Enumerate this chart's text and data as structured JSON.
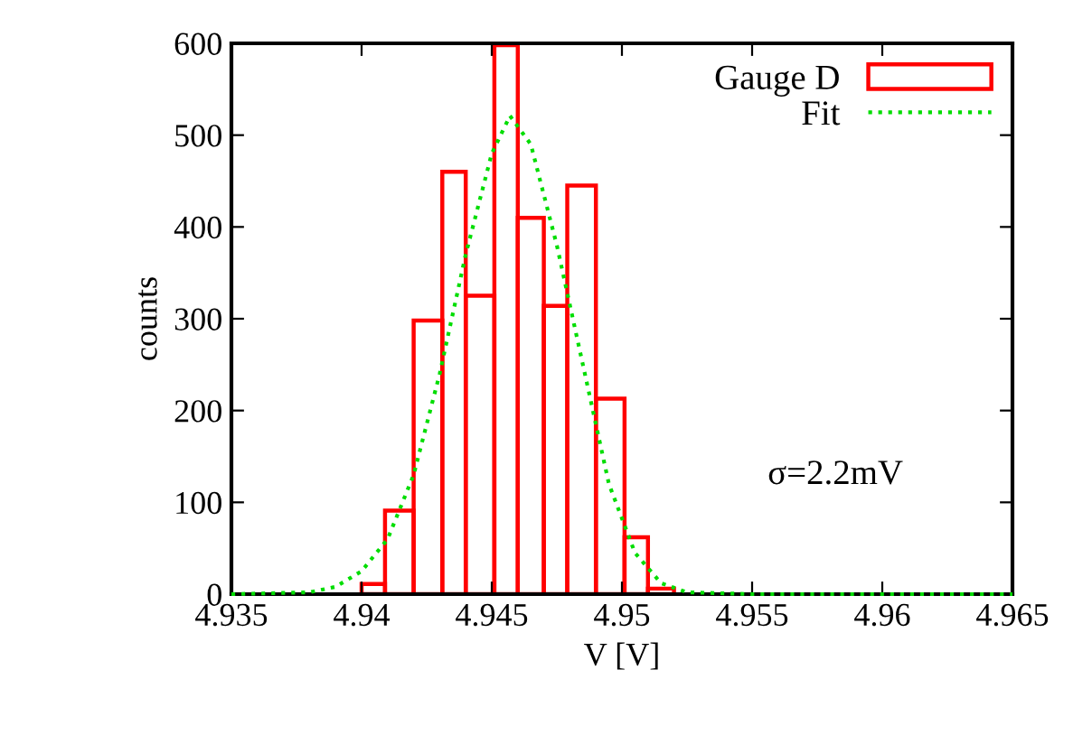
{
  "chart_data": {
    "type": "histogram",
    "xlabel": "V [V]",
    "ylabel": "counts",
    "bins": [
      4.94,
      4.9409,
      4.942,
      4.9431,
      4.944,
      4.9451,
      4.946,
      4.947,
      4.9479,
      4.949,
      4.9501,
      4.951,
      4.952
    ],
    "series": [
      {
        "name": "Gauge D",
        "color": "#ff0000",
        "values": [
          11,
          91,
          298,
          460,
          325,
          598,
          410,
          314,
          445,
          213,
          62,
          6
        ]
      },
      {
        "name": "Fit",
        "type": "line",
        "color": "#00dd00",
        "line_style": "dotted",
        "x": [
          4.935,
          4.938,
          4.939,
          4.94,
          4.941,
          4.942,
          4.943,
          4.944,
          4.945,
          4.9457,
          4.9465,
          4.9475,
          4.9485,
          4.9495,
          4.9505,
          4.9515,
          4.9525,
          4.955,
          4.965
        ],
        "values": [
          0,
          2,
          8,
          25,
          60,
          130,
          240,
          370,
          480,
          521,
          490,
          380,
          250,
          120,
          45,
          12,
          2,
          0,
          0
        ]
      }
    ],
    "xlim": [
      4.935,
      4.965
    ],
    "xticks": [
      4.935,
      4.94,
      4.945,
      4.95,
      4.955,
      4.96,
      4.965
    ],
    "ylim": [
      0,
      600
    ],
    "yticks": [
      0,
      100,
      200,
      300,
      400,
      500,
      600
    ],
    "annotations": [
      "σ=2.2mV"
    ],
    "legend": "top right",
    "grid": false
  }
}
